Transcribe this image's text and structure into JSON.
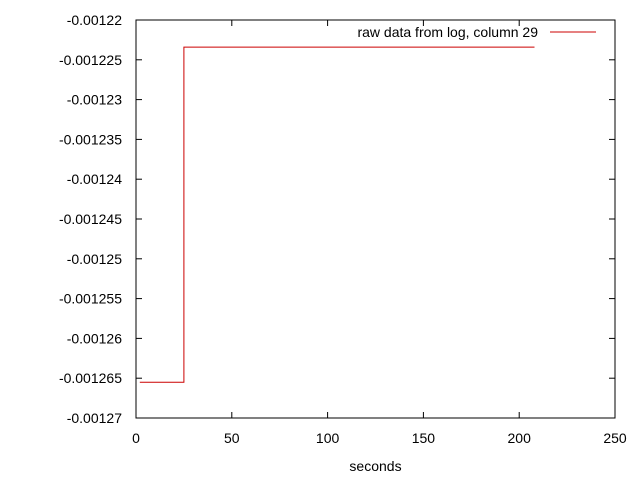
{
  "chart_data": {
    "type": "line",
    "step": true,
    "xlabel": "seconds",
    "ylabel": "",
    "xlim": [
      0,
      250
    ],
    "ylim": [
      -0.00127,
      -0.00122
    ],
    "x_ticks": [
      0,
      50,
      100,
      150,
      200,
      250
    ],
    "x_tick_labels": [
      "0",
      "50",
      "100",
      "150",
      "200",
      "250"
    ],
    "y_ticks": [
      -0.00122,
      -0.001225,
      -0.00123,
      -0.001235,
      -0.00124,
      -0.001245,
      -0.00125,
      -0.001255,
      -0.00126,
      -0.001265,
      -0.00127
    ],
    "y_tick_labels": [
      "-0.00122",
      "-0.001225",
      "-0.00123",
      "-0.001235",
      "-0.00124",
      "-0.001245",
      "-0.00125",
      "-0.001255",
      "-0.00126",
      "-0.001265",
      "-0.00127"
    ],
    "grid": false,
    "legend_position": "top-right",
    "series": [
      {
        "name": "raw data from log, column 29",
        "color": "#cc0000",
        "x": [
          2,
          25,
          25,
          208
        ],
        "y": [
          -0.0012655,
          -0.0012655,
          -0.0012234,
          -0.0012234
        ]
      }
    ]
  }
}
